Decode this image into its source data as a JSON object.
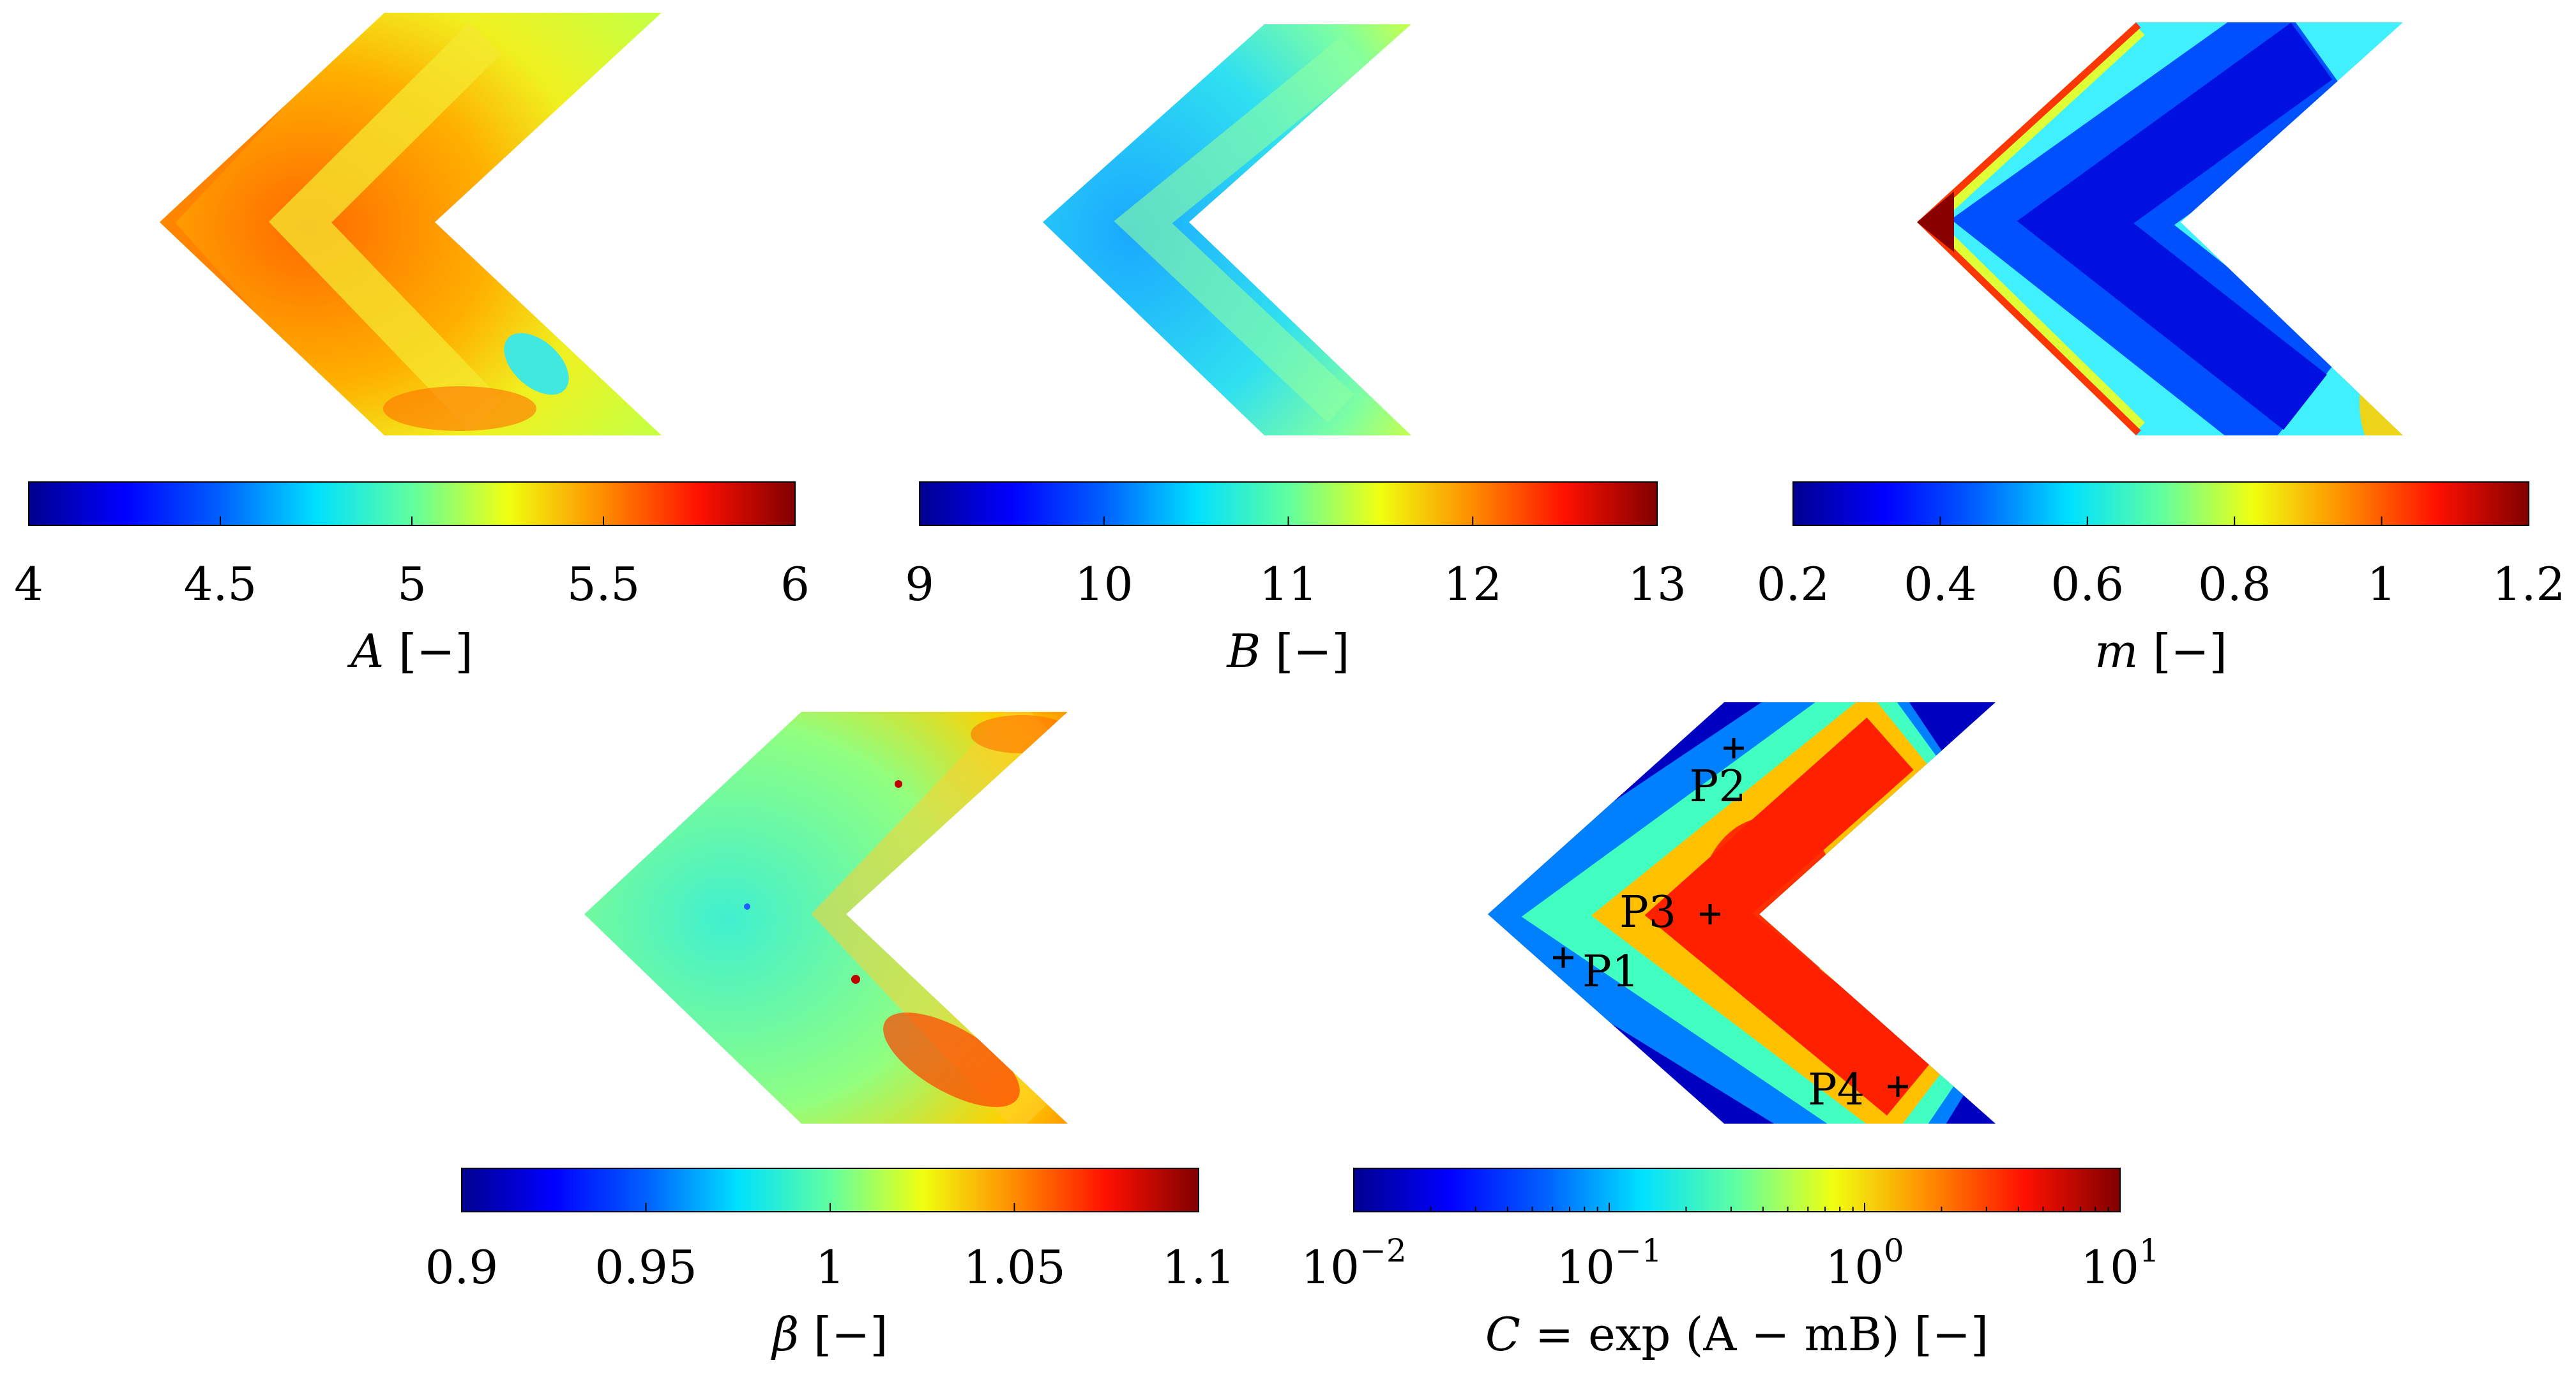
{
  "chart_data": [
    {
      "type": "heatmap",
      "id": "A",
      "label_var": "A",
      "label_unit": "[−]",
      "ylim": [
        4,
        6
      ],
      "scale": "linear",
      "ticks": [
        4,
        4.5,
        5,
        5.5,
        6
      ],
      "tick_labels": [
        "4",
        "4.5",
        "5",
        "5.5",
        "6"
      ],
      "colormap": "jet"
    },
    {
      "type": "heatmap",
      "id": "B",
      "label_var": "B",
      "label_unit": "[−]",
      "ylim": [
        9,
        13
      ],
      "scale": "linear",
      "ticks": [
        9,
        10,
        11,
        12,
        13
      ],
      "tick_labels": [
        "9",
        "10",
        "11",
        "12",
        "13"
      ],
      "colormap": "jet"
    },
    {
      "type": "heatmap",
      "id": "m",
      "label_var": "m",
      "label_unit": "[−]",
      "ylim": [
        0.2,
        1.2
      ],
      "scale": "linear",
      "ticks": [
        0.2,
        0.4,
        0.6,
        0.8,
        1,
        1.2
      ],
      "tick_labels": [
        "0.2",
        "0.4",
        "0.6",
        "0.8",
        "1",
        "1.2"
      ],
      "colormap": "jet"
    },
    {
      "type": "heatmap",
      "id": "beta",
      "label_var": "β",
      "label_unit": "[−]",
      "ylim": [
        0.9,
        1.1
      ],
      "scale": "linear",
      "ticks": [
        0.9,
        0.95,
        1,
        1.05,
        1.1
      ],
      "tick_labels": [
        "0.9",
        "0.95",
        "1",
        "1.05",
        "1.1"
      ],
      "colormap": "jet"
    },
    {
      "type": "heatmap",
      "id": "C",
      "label_var": "C",
      "label_rest": " = exp (A − mB) [−]",
      "ylim": [
        0.01,
        10
      ],
      "scale": "log",
      "ticks": [
        0.01,
        0.1,
        1,
        10
      ],
      "tick_labels": [
        {
          "base": "10",
          "exp": "−2"
        },
        {
          "base": "10",
          "exp": "−1"
        },
        {
          "base": "10",
          "exp": "0"
        },
        {
          "base": "10",
          "exp": "1"
        }
      ],
      "colormap": "jet",
      "points": [
        "P1",
        "P2",
        "P3",
        "P4"
      ]
    }
  ],
  "colors": {
    "jet": [
      "#00008f",
      "#0000ff",
      "#0080ff",
      "#00ffff",
      "#80ff80",
      "#ffff00",
      "#ff8000",
      "#ff0000",
      "#800000"
    ],
    "marker": "#000000"
  }
}
